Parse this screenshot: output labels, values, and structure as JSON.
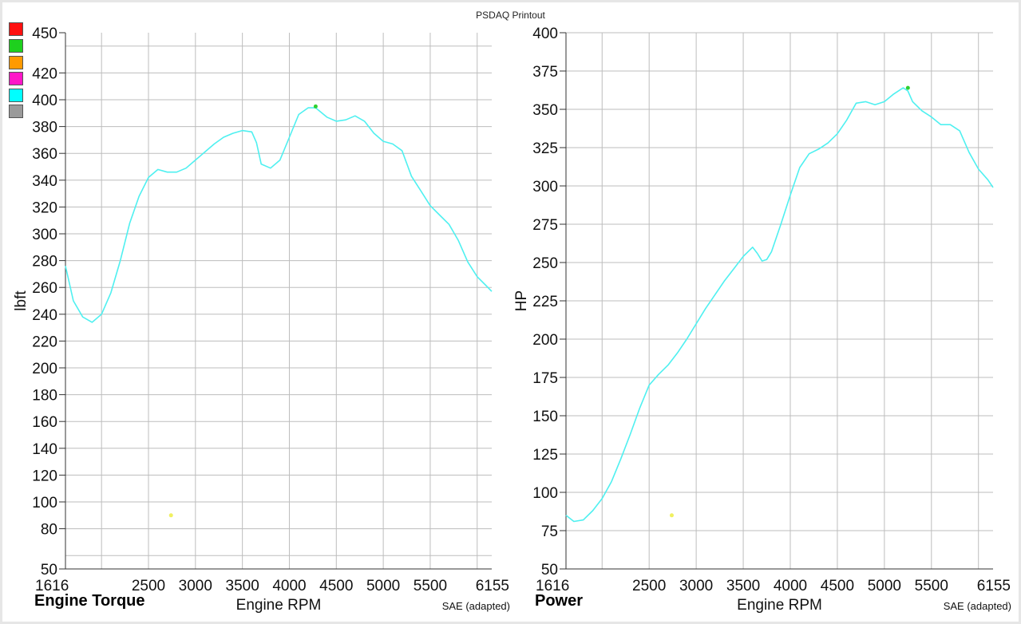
{
  "page": {
    "title": "PSDAQ Printout"
  },
  "legend_swatches": [
    {
      "name": "red-swatch",
      "color": "#ff1010"
    },
    {
      "name": "green-swatch",
      "color": "#1ed01e"
    },
    {
      "name": "orange-swatch",
      "color": "#ff9a00"
    },
    {
      "name": "magenta-swatch",
      "color": "#ff16c8"
    },
    {
      "name": "cyan-swatch",
      "color": "#00ffff"
    },
    {
      "name": "gray-swatch",
      "color": "#9a9a9a"
    }
  ],
  "colors": {
    "series": "#4ff0f0",
    "peak_marker": "#2fd02f",
    "cursor_marker": "#f0f060",
    "grid": "#bdbdbd"
  },
  "chart_data": [
    {
      "type": "line",
      "title": "Engine Torque",
      "xlabel": "Engine RPM",
      "ylabel": "lbft",
      "correction": "SAE (adapted)",
      "xlim": [
        1616,
        6155
      ],
      "ylim": [
        50,
        450
      ],
      "grid": true,
      "x_ticks": [
        1616,
        2500,
        3000,
        3500,
        4000,
        4500,
        5000,
        5500,
        6155
      ],
      "x_gridlines": [
        2000,
        2500,
        3000,
        3500,
        4000,
        4500,
        5000,
        5500,
        6000
      ],
      "y_ticks": [
        50,
        80,
        100,
        120,
        140,
        160,
        180,
        200,
        220,
        240,
        260,
        280,
        300,
        320,
        340,
        360,
        380,
        400,
        420,
        450
      ],
      "y_gridlines": [
        60,
        80,
        100,
        120,
        140,
        160,
        180,
        200,
        220,
        240,
        260,
        280,
        300,
        320,
        340,
        360,
        380,
        400,
        420,
        440
      ],
      "series": [
        {
          "x": [
            1616,
            1700,
            1800,
            1900,
            2000,
            2100,
            2200,
            2300,
            2400,
            2500,
            2600,
            2700,
            2800,
            2900,
            3000,
            3100,
            3200,
            3300,
            3400,
            3500,
            3600,
            3650,
            3700,
            3800,
            3900,
            4000,
            4100,
            4200,
            4280,
            4400,
            4500,
            4600,
            4700,
            4800,
            4900,
            5000,
            5100,
            5200,
            5300,
            5400,
            5500,
            5600,
            5700,
            5800,
            5900,
            6000,
            6100,
            6155
          ],
          "values": [
            276,
            250,
            238,
            234,
            240,
            256,
            280,
            308,
            328,
            342,
            348,
            346,
            346,
            349,
            355,
            361,
            367,
            372,
            375,
            377,
            376,
            368,
            352,
            349,
            355,
            372,
            389,
            394,
            394,
            387,
            384,
            385,
            388,
            384,
            375,
            369,
            367,
            362,
            343,
            332,
            321,
            314,
            307,
            295,
            279,
            268,
            261,
            257
          ]
        }
      ],
      "peak_marker": {
        "x": 4280,
        "y": 395
      },
      "cursor_marker": {
        "x": 2740,
        "y": 90
      }
    },
    {
      "type": "line",
      "title": "Power",
      "xlabel": "Engine RPM",
      "ylabel": "HP",
      "correction": "SAE (adapted)",
      "xlim": [
        1616,
        6155
      ],
      "ylim": [
        50,
        400
      ],
      "grid": true,
      "x_ticks": [
        1616,
        2500,
        3000,
        3500,
        4000,
        4500,
        5000,
        5500,
        6155
      ],
      "x_gridlines": [
        2000,
        2500,
        3000,
        3500,
        4000,
        4500,
        5000,
        5500,
        6000
      ],
      "y_ticks": [
        50,
        75,
        100,
        125,
        150,
        175,
        200,
        225,
        250,
        275,
        300,
        325,
        350,
        375,
        400
      ],
      "y_gridlines": [
        75,
        100,
        125,
        150,
        175,
        200,
        225,
        250,
        275,
        300,
        325,
        350,
        375,
        400
      ],
      "series": [
        {
          "x": [
            1616,
            1700,
            1800,
            1900,
            2000,
            2100,
            2200,
            2300,
            2400,
            2500,
            2600,
            2700,
            2800,
            2900,
            3000,
            3100,
            3200,
            3300,
            3400,
            3500,
            3600,
            3650,
            3700,
            3750,
            3800,
            3900,
            4000,
            4100,
            4200,
            4300,
            4400,
            4500,
            4600,
            4700,
            4800,
            4900,
            5000,
            5100,
            5200,
            5250,
            5300,
            5400,
            5500,
            5600,
            5700,
            5800,
            5900,
            6000,
            6100,
            6155
          ],
          "values": [
            85,
            81,
            82,
            88,
            96,
            107,
            122,
            138,
            155,
            170,
            177,
            183,
            191,
            200,
            210,
            220,
            229,
            238,
            246,
            254,
            260,
            256,
            251,
            252,
            257,
            275,
            294,
            312,
            321,
            324,
            328,
            334,
            343,
            354,
            355,
            353,
            355,
            360,
            364,
            362,
            355,
            349,
            345,
            340,
            340,
            336,
            322,
            311,
            304,
            299
          ]
        }
      ],
      "peak_marker": {
        "x": 5250,
        "y": 364
      },
      "cursor_marker": {
        "x": 2740,
        "y": 85
      }
    }
  ]
}
